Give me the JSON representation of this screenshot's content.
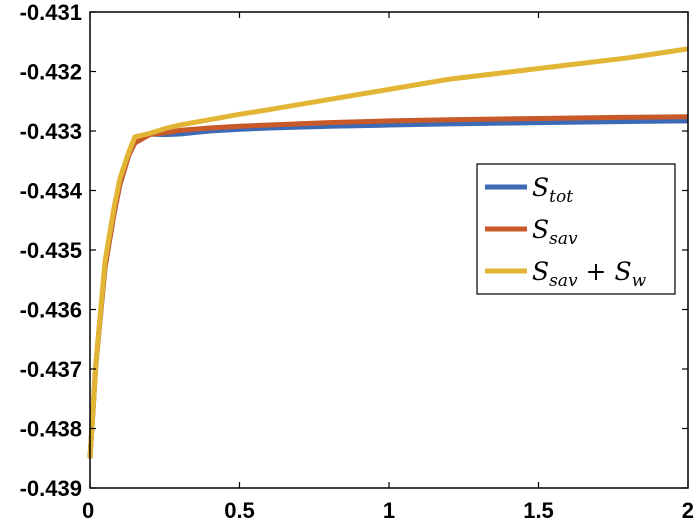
{
  "chart_data": {
    "type": "line",
    "title": "",
    "xlabel": "",
    "ylabel": "",
    "xlim": [
      0,
      2
    ],
    "ylim": [
      -0.439,
      -0.431
    ],
    "grid": false,
    "legend_position": "right",
    "x_ticks": [
      {
        "value": 0,
        "label": "0"
      },
      {
        "value": 0.5,
        "label": "0.5"
      },
      {
        "value": 1,
        "label": "1"
      },
      {
        "value": 1.5,
        "label": "1.5"
      },
      {
        "value": 2,
        "label": "2"
      }
    ],
    "y_ticks": [
      {
        "value": -0.431,
        "label": "-0.431"
      },
      {
        "value": -0.432,
        "label": "-0.432"
      },
      {
        "value": -0.433,
        "label": "-0.433"
      },
      {
        "value": -0.434,
        "label": "-0.434"
      },
      {
        "value": -0.435,
        "label": "-0.435"
      },
      {
        "value": -0.436,
        "label": "-0.436"
      },
      {
        "value": -0.437,
        "label": "-0.437"
      },
      {
        "value": -0.438,
        "label": "-0.438"
      },
      {
        "value": -0.439,
        "label": "-0.439"
      }
    ],
    "series": [
      {
        "name": "S_tot",
        "legend": {
          "base": "S",
          "sub": "tot"
        },
        "color": "#3d6ab5",
        "x": [
          0,
          0.02,
          0.05,
          0.08,
          0.1,
          0.13,
          0.15,
          0.2,
          0.25,
          0.3,
          0.4,
          0.5,
          0.6,
          0.8,
          1.0,
          1.2,
          1.5,
          1.8,
          2.0
        ],
        "y": [
          -0.4385,
          -0.4369,
          -0.4353,
          -0.4344,
          -0.4339,
          -0.4334,
          -0.4332,
          -0.43305,
          -0.43306,
          -0.43305,
          -0.433,
          -0.43297,
          -0.43295,
          -0.43292,
          -0.4329,
          -0.43288,
          -0.43286,
          -0.43284,
          -0.43283
        ]
      },
      {
        "name": "S_sav",
        "legend": {
          "base": "S",
          "sub": "sav"
        },
        "color": "#c85a2a",
        "x": [
          0,
          0.02,
          0.05,
          0.08,
          0.1,
          0.13,
          0.15,
          0.2,
          0.25,
          0.3,
          0.4,
          0.5,
          0.6,
          0.8,
          1.0,
          1.2,
          1.5,
          1.8,
          2.0
        ],
        "y": [
          -0.4385,
          -0.4369,
          -0.4353,
          -0.4344,
          -0.4339,
          -0.4334,
          -0.4332,
          -0.43306,
          -0.43303,
          -0.43299,
          -0.43295,
          -0.43292,
          -0.4329,
          -0.43286,
          -0.43283,
          -0.43281,
          -0.43279,
          -0.43277,
          -0.43276
        ]
      },
      {
        "name": "S_sav + S_w",
        "legend": {
          "base": "S",
          "sub": "sav",
          "op": "+",
          "base2": "S",
          "sub2": "w"
        },
        "color": "#e2b534",
        "x": [
          0,
          0.02,
          0.05,
          0.08,
          0.1,
          0.13,
          0.15,
          0.2,
          0.25,
          0.3,
          0.4,
          0.5,
          0.6,
          0.8,
          1.0,
          1.2,
          1.5,
          1.8,
          2.0
        ],
        "y": [
          -0.4385,
          -0.4369,
          -0.4352,
          -0.4343,
          -0.4338,
          -0.43335,
          -0.4331,
          -0.43304,
          -0.43296,
          -0.4329,
          -0.43281,
          -0.43272,
          -0.43264,
          -0.43247,
          -0.4323,
          -0.43213,
          -0.43195,
          -0.43177,
          -0.43162
        ]
      }
    ]
  }
}
